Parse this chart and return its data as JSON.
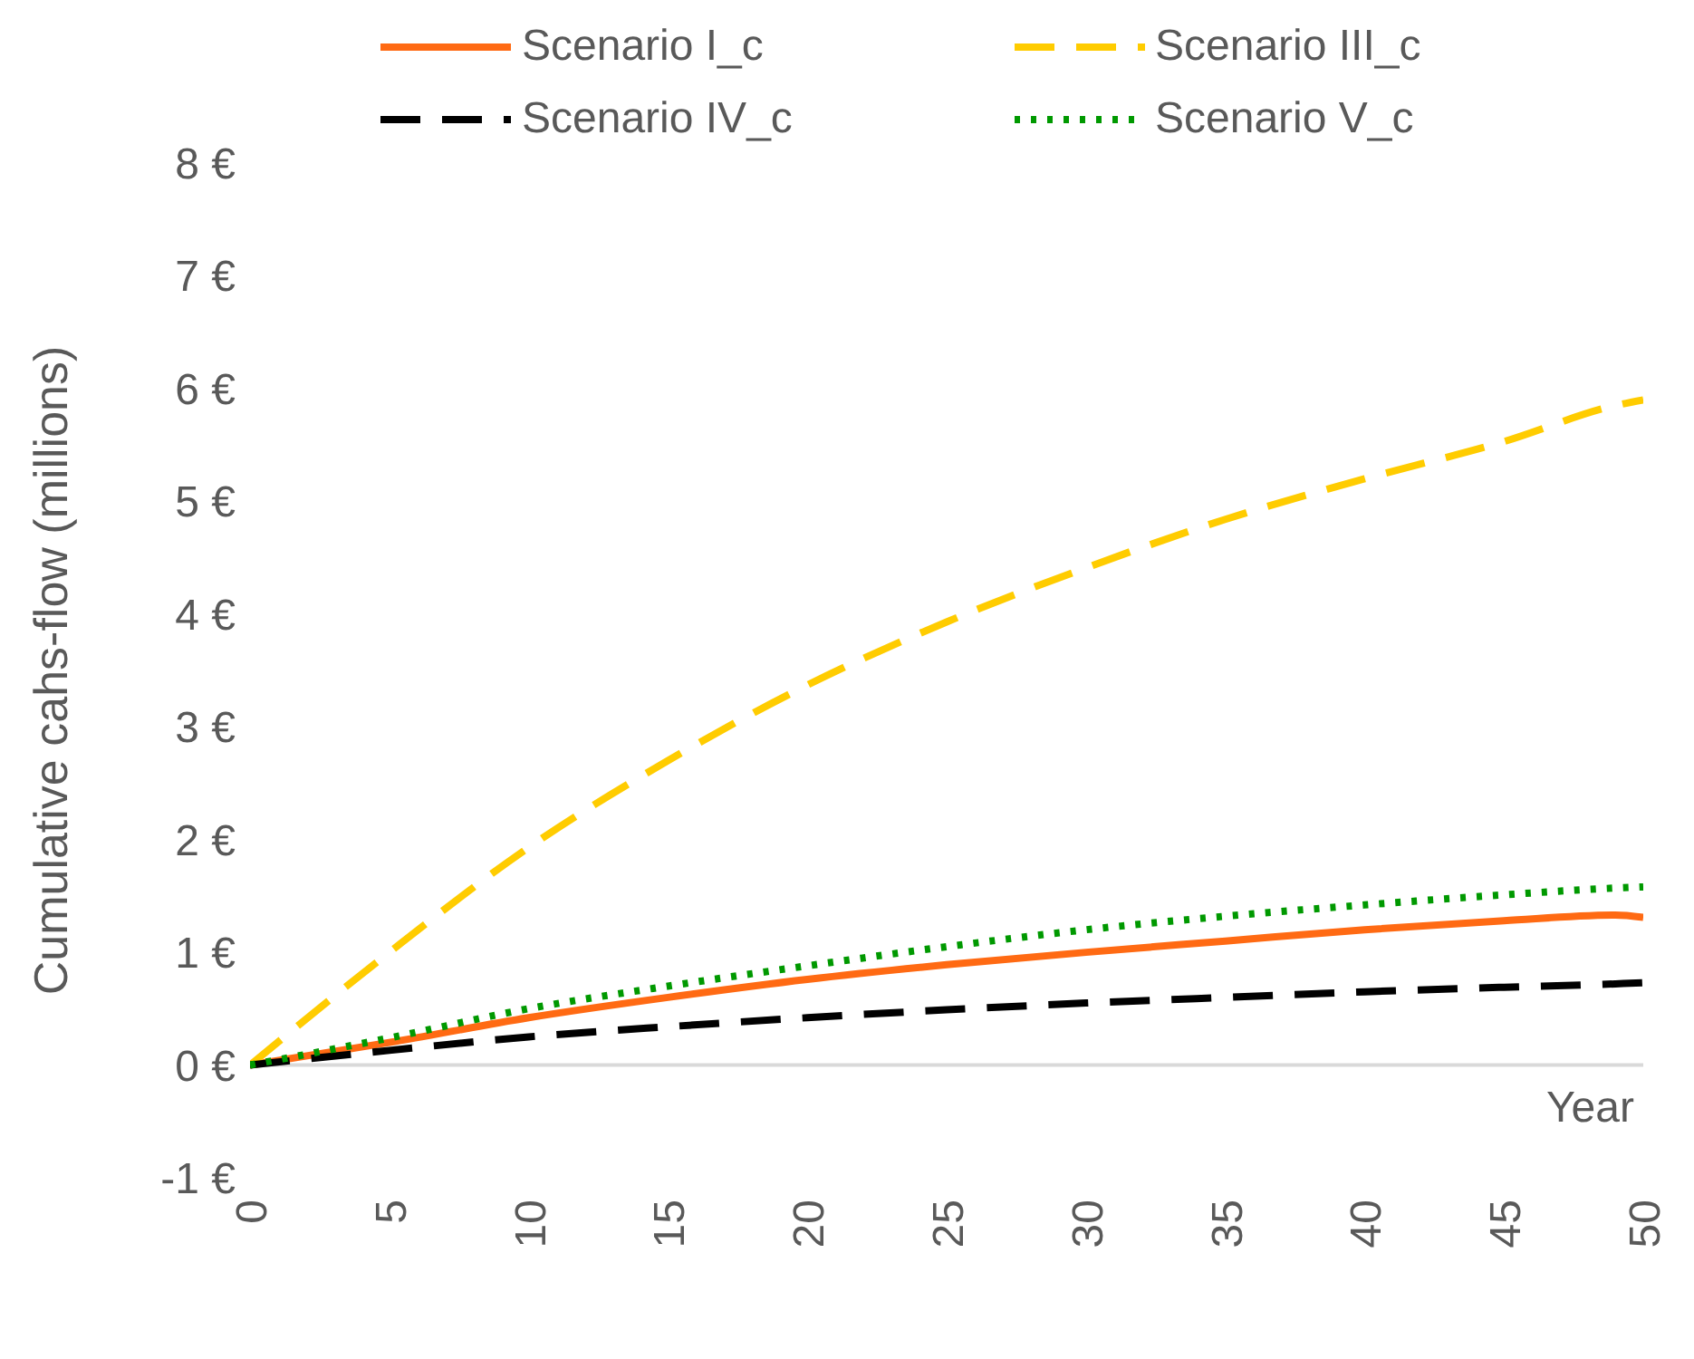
{
  "chart_data": {
    "type": "line",
    "ylabel": "Cumulative cahs-flow (millions)",
    "xlabel": "Year",
    "x": [
      0,
      5,
      10,
      15,
      20,
      25,
      30,
      35,
      40,
      45,
      49,
      50
    ],
    "series": [
      {
        "name": "Scenario I_c",
        "color": "#ff6a13",
        "line_style": "solid",
        "values": [
          0,
          0.2,
          0.42,
          0.6,
          0.76,
          0.89,
          1.0,
          1.1,
          1.2,
          1.28,
          1.33,
          1.31
        ]
      },
      {
        "name": "Scenario III_c",
        "color": "#ffcc00",
        "line_style": "dashed",
        "values": [
          0,
          1.0,
          1.93,
          2.7,
          3.37,
          3.93,
          4.41,
          4.84,
          5.2,
          5.53,
          5.85,
          5.9
        ]
      },
      {
        "name": "Scenario IV_c",
        "color": "#000000",
        "line_style": "dashed",
        "values": [
          0,
          0.13,
          0.25,
          0.34,
          0.42,
          0.49,
          0.55,
          0.6,
          0.65,
          0.69,
          0.72,
          0.73
        ]
      },
      {
        "name": "Scenario V_c",
        "color": "#009900",
        "line_style": "dotted",
        "values": [
          0,
          0.24,
          0.5,
          0.7,
          0.88,
          1.05,
          1.2,
          1.32,
          1.42,
          1.51,
          1.57,
          1.58
        ]
      }
    ],
    "xlim": [
      0,
      50
    ],
    "xticks": [
      0,
      5,
      10,
      15,
      20,
      25,
      30,
      35,
      40,
      45,
      50
    ],
    "ylim": [
      -1,
      8
    ],
    "yticks": [
      {
        "value": -1,
        "label": "-1 €"
      },
      {
        "value": 0,
        "label": "0 €"
      },
      {
        "value": 1,
        "label": "1 €"
      },
      {
        "value": 2,
        "label": "2 €"
      },
      {
        "value": 3,
        "label": "3 €"
      },
      {
        "value": 4,
        "label": "4 €"
      },
      {
        "value": 5,
        "label": "5 €"
      },
      {
        "value": 6,
        "label": "6 €"
      },
      {
        "value": 7,
        "label": "7 €"
      },
      {
        "value": 8,
        "label": "8 €"
      }
    ],
    "ref_lines": [
      {
        "axis": "y",
        "value": 0,
        "color": "#d9d9d9"
      }
    ],
    "grid": false,
    "legend": "top",
    "marker": "none"
  }
}
